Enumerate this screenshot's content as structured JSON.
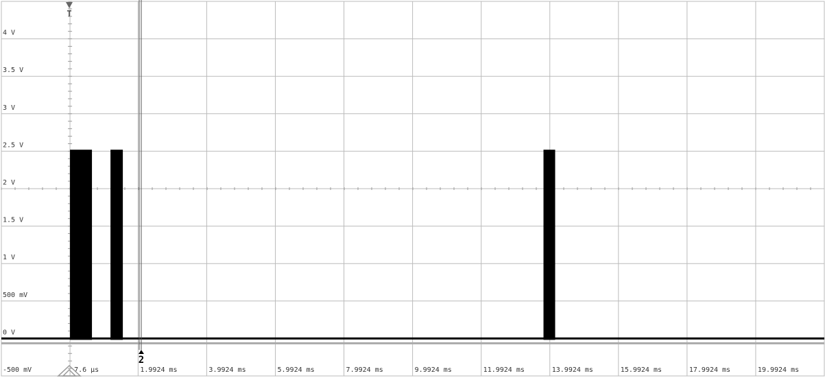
{
  "chart_data": {
    "type": "line",
    "xlim": [
      -1.9924,
      21.9924
    ],
    "ylim": [
      -0.5,
      4.5
    ],
    "xticks": [
      {
        "value": 0.0076,
        "label": "7.6 µs"
      },
      {
        "value": 1.9924,
        "label": "1.9924 ms"
      },
      {
        "value": 3.9924,
        "label": "3.9924 ms"
      },
      {
        "value": 5.9924,
        "label": "5.9924 ms"
      },
      {
        "value": 7.9924,
        "label": "7.9924 ms"
      },
      {
        "value": 9.9924,
        "label": "9.9924 ms"
      },
      {
        "value": 11.9924,
        "label": "11.9924 ms"
      },
      {
        "value": 13.9924,
        "label": "13.9924 ms"
      },
      {
        "value": 15.9924,
        "label": "15.9924 ms"
      },
      {
        "value": 17.9924,
        "label": "17.9924 ms"
      },
      {
        "value": 19.9924,
        "label": "19.9924 ms"
      }
    ],
    "yticks": [
      {
        "value": -0.5,
        "label": "-500 mV"
      },
      {
        "value": 0,
        "label": "0 V"
      },
      {
        "value": 0.5,
        "label": "500 mV"
      },
      {
        "value": 1,
        "label": "1 V"
      },
      {
        "value": 1.5,
        "label": "1.5 V"
      },
      {
        "value": 2,
        "label": "2 V"
      },
      {
        "value": 2.5,
        "label": "2.5 V"
      },
      {
        "value": 3,
        "label": "3 V"
      },
      {
        "value": 3.5,
        "label": "3.5 V"
      },
      {
        "value": 4,
        "label": "4 V"
      }
    ],
    "grid": true,
    "color": "#000000",
    "baseline": 0,
    "bursts": [
      {
        "start": 0.0076,
        "end": 0.6476,
        "high": 2.52
      },
      {
        "start": 1.1876,
        "end": 1.5476,
        "high": 2.52
      },
      {
        "start": 13.8076,
        "end": 14.1476,
        "high": 2.52
      }
    ],
    "trigger_marker": "T",
    "cursor_marker": "2"
  }
}
